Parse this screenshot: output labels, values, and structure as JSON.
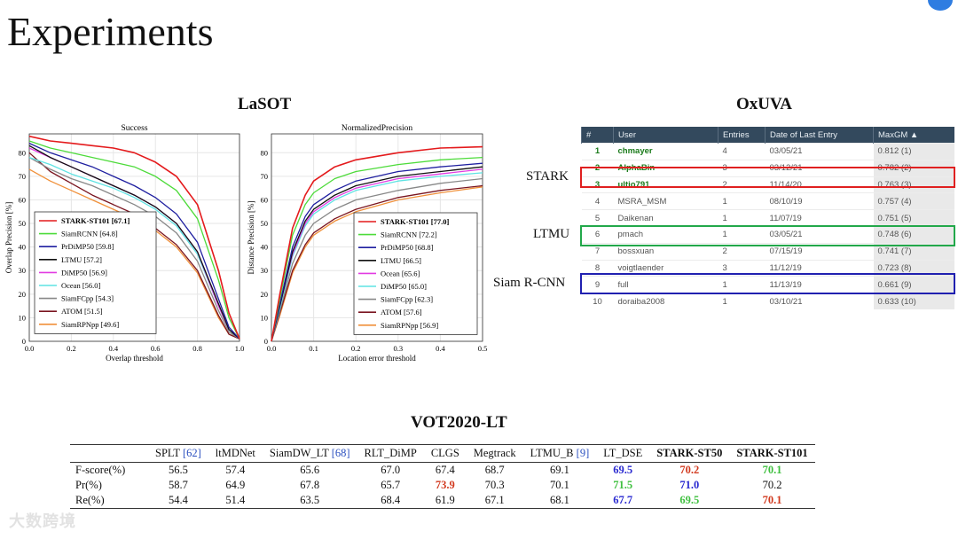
{
  "slide_title": "Experiments",
  "sections": {
    "lasot": "LaSOT",
    "oxuva": "OxUVA",
    "vot": "VOT2020-LT"
  },
  "chart_data": [
    {
      "type": "line",
      "title": "Success",
      "xlabel": "Overlap threshold",
      "ylabel": "Overlap Precision [%]",
      "xlim": [
        0,
        1
      ],
      "ylim": [
        0,
        88
      ],
      "xticks": [
        "0.0",
        "0.2",
        "0.4",
        "0.6",
        "0.8",
        "1.0"
      ],
      "yticks": [
        "0",
        "10",
        "20",
        "30",
        "40",
        "50",
        "60",
        "70",
        "80"
      ],
      "legend_position": "bottom-left",
      "x": [
        0,
        0.1,
        0.2,
        0.3,
        0.4,
        0.5,
        0.6,
        0.7,
        0.8,
        0.9,
        0.95,
        1.0
      ],
      "series": [
        {
          "name": "STARK-ST101 [67.1]",
          "color": "#e41a1c",
          "bold": true,
          "values": [
            87,
            85,
            84,
            83,
            82,
            80,
            76,
            70,
            58,
            30,
            12,
            1
          ]
        },
        {
          "name": "SiamRCNN [64.8]",
          "color": "#4ddb3a",
          "values": [
            85,
            82,
            80,
            78,
            76,
            74,
            70,
            64,
            52,
            26,
            10,
            1
          ]
        },
        {
          "name": "PrDiMP50 [59.8]",
          "color": "#1f1fa0",
          "values": [
            84,
            80,
            77,
            74,
            70,
            66,
            61,
            54,
            42,
            18,
            6,
            1
          ]
        },
        {
          "name": "LTMU [57.2]",
          "color": "#111111",
          "values": [
            83,
            78,
            74,
            70,
            66,
            62,
            57,
            50,
            38,
            16,
            5,
            1
          ]
        },
        {
          "name": "DiMP50 [56.9]",
          "color": "#e23be2",
          "values": [
            82,
            78,
            74,
            70,
            66,
            62,
            57,
            50,
            38,
            15,
            5,
            1
          ]
        },
        {
          "name": "Ocean [56.0]",
          "color": "#5fe3e3",
          "values": [
            78,
            75,
            71,
            68,
            65,
            61,
            56,
            49,
            37,
            15,
            5,
            1
          ]
        },
        {
          "name": "SiamFCpp [54.3]",
          "color": "#888888",
          "values": [
            78,
            73,
            69,
            66,
            62,
            58,
            53,
            46,
            34,
            13,
            4,
            1
          ]
        },
        {
          "name": "ATOM [51.5]",
          "color": "#7a1520",
          "values": [
            80,
            72,
            67,
            62,
            58,
            54,
            48,
            41,
            30,
            11,
            3,
            1
          ]
        },
        {
          "name": "SiamRPNpp [49.6]",
          "color": "#f0903a",
          "values": [
            73,
            68,
            64,
            60,
            56,
            52,
            47,
            40,
            29,
            10,
            3,
            1
          ]
        }
      ]
    },
    {
      "type": "line",
      "title": "NormalizedPrecision",
      "xlabel": "Location error threshold",
      "ylabel": "Distance Precision [%]",
      "xlim": [
        0,
        0.5
      ],
      "ylim": [
        0,
        88
      ],
      "xticks": [
        "0.0",
        "0.1",
        "0.2",
        "0.3",
        "0.4",
        "0.5"
      ],
      "yticks": [
        "0",
        "10",
        "20",
        "30",
        "40",
        "50",
        "60",
        "70",
        "80"
      ],
      "legend_position": "bottom-right",
      "x": [
        0,
        0.02,
        0.05,
        0.08,
        0.1,
        0.15,
        0.2,
        0.3,
        0.4,
        0.5
      ],
      "series": [
        {
          "name": "STARK-ST101 [77.0]",
          "color": "#e41a1c",
          "bold": true,
          "values": [
            0,
            20,
            48,
            62,
            68,
            74,
            77,
            80,
            82,
            82.5
          ]
        },
        {
          "name": "SiamRCNN [72.2]",
          "color": "#4ddb3a",
          "values": [
            0,
            18,
            45,
            58,
            63,
            69,
            72,
            75,
            77,
            78
          ]
        },
        {
          "name": "PrDiMP50 [68.8]",
          "color": "#1f1fa0",
          "values": [
            0,
            16,
            40,
            53,
            58,
            64,
            68,
            72,
            74,
            75.5
          ]
        },
        {
          "name": "LTMU [66.5]",
          "color": "#111111",
          "values": [
            0,
            15,
            38,
            51,
            56,
            62,
            66,
            70,
            72,
            74
          ]
        },
        {
          "name": "Ocean [65.6]",
          "color": "#e23be2",
          "values": [
            0,
            15,
            37,
            50,
            55,
            61,
            65,
            69,
            71,
            73
          ]
        },
        {
          "name": "DiMP50 [65.0]",
          "color": "#5fe3e3",
          "values": [
            0,
            14,
            36,
            49,
            54,
            60,
            64,
            68,
            70,
            71.5
          ]
        },
        {
          "name": "SiamFCpp [62.3]",
          "color": "#888888",
          "values": [
            0,
            13,
            33,
            45,
            50,
            56,
            60,
            64,
            67,
            69
          ]
        },
        {
          "name": "ATOM [57.6]",
          "color": "#7a1520",
          "values": [
            0,
            12,
            30,
            41,
            46,
            52,
            56,
            61,
            64,
            66
          ]
        },
        {
          "name": "SiamRPNpp [56.9]",
          "color": "#f0903a",
          "values": [
            0,
            11,
            29,
            40,
            45,
            51,
            55,
            60,
            63,
            65.5
          ]
        }
      ]
    }
  ],
  "leaderboard": {
    "headers": [
      "#",
      "User",
      "Entries",
      "Date of Last Entry",
      "MaxGM ▲"
    ],
    "rows": [
      [
        "1",
        "chmayer",
        "4",
        "03/05/21",
        "0.812 (1)"
      ],
      [
        "2",
        "AlphaBin",
        "3",
        "03/12/21",
        "0.782 (2)"
      ],
      [
        "3",
        "ultio791",
        "2",
        "11/14/20",
        "0.763 (3)"
      ],
      [
        "4",
        "MSRA_MSM",
        "1",
        "08/10/19",
        "0.757 (4)"
      ],
      [
        "5",
        "Daikenan",
        "1",
        "11/07/19",
        "0.751 (5)"
      ],
      [
        "6",
        "pmach",
        "1",
        "03/05/21",
        "0.748 (6)"
      ],
      [
        "7",
        "bossxuan",
        "2",
        "07/15/19",
        "0.741 (7)"
      ],
      [
        "8",
        "voigtlaender",
        "3",
        "11/12/19",
        "0.723 (8)"
      ],
      [
        "9",
        "full",
        "1",
        "11/13/19",
        "0.661 (9)"
      ],
      [
        "10",
        "doraiba2008",
        "1",
        "03/10/21",
        "0.633 (10)"
      ]
    ],
    "green_users": [
      0,
      1,
      2
    ],
    "labels": {
      "stark": "STARK",
      "ltmu": "LTMU",
      "siam": "Siam R-CNN"
    },
    "colors": {
      "stark": "#e02020",
      "ltmu": "#22a84a",
      "siam": "#2020b0"
    }
  },
  "vot_table": {
    "headers": [
      {
        "name": "SPLT",
        "ref": "[62]"
      },
      {
        "name": "ltMDNet",
        "ref": ""
      },
      {
        "name": "SiamDW_LT",
        "ref": "[68]"
      },
      {
        "name": "RLT_DiMP",
        "ref": ""
      },
      {
        "name": "CLGS",
        "ref": ""
      },
      {
        "name": "Megtrack",
        "ref": ""
      },
      {
        "name": "LTMU_B",
        "ref": "[9]"
      },
      {
        "name": "LT_DSE",
        "ref": ""
      },
      {
        "name": "STARK-ST50",
        "ref": "",
        "bold": true
      },
      {
        "name": "STARK-ST101",
        "ref": "",
        "bold": true
      }
    ],
    "rows": [
      {
        "label": "F-score(%)",
        "values": [
          "56.5",
          "57.4",
          "65.6",
          "67.0",
          "67.4",
          "68.7",
          "69.1",
          "69.5",
          "70.2",
          "70.1"
        ],
        "styles": [
          "",
          "",
          "",
          "",
          "",
          "",
          "",
          "blue",
          "red",
          "green"
        ]
      },
      {
        "label": "Pr(%)",
        "values": [
          "58.7",
          "64.9",
          "67.8",
          "65.7",
          "73.9",
          "70.3",
          "70.1",
          "71.5",
          "71.0",
          "70.2"
        ],
        "styles": [
          "",
          "",
          "",
          "",
          "red",
          "",
          "",
          "green",
          "blue",
          ""
        ]
      },
      {
        "label": "Re(%)",
        "values": [
          "54.4",
          "51.4",
          "63.5",
          "68.4",
          "61.9",
          "67.1",
          "68.1",
          "67.7",
          "69.5",
          "70.1"
        ],
        "styles": [
          "",
          "",
          "",
          "",
          "",
          "",
          "",
          "blue",
          "green",
          "red"
        ]
      }
    ]
  },
  "watermark": "大数跨境"
}
